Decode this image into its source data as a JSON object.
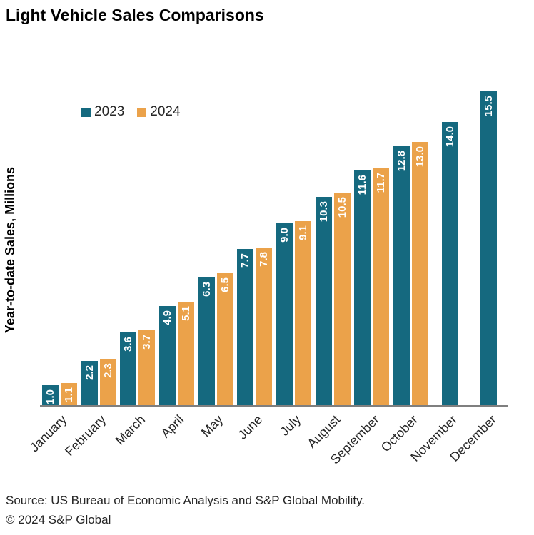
{
  "title": "Light Vehicle Sales Comparisons",
  "chart_data": {
    "type": "bar",
    "title": "Light Vehicle Sales Comparisons",
    "ylabel": "Year-to-date Sales, Millions",
    "xlabel": "",
    "ylim": [
      0,
      15.5
    ],
    "grid": false,
    "legend_position": "top-left-inside",
    "value_label_style": "rotated-vertical-white-inside-bar-top",
    "categories": [
      "January",
      "February",
      "March",
      "April",
      "May",
      "June",
      "July",
      "August",
      "September",
      "October",
      "November",
      "December"
    ],
    "series": [
      {
        "name": "2023",
        "color": "#15697f",
        "values": [
          1.0,
          2.2,
          3.6,
          4.9,
          6.3,
          7.7,
          9.0,
          10.3,
          11.6,
          12.8,
          14.0,
          15.5
        ]
      },
      {
        "name": "2024",
        "color": "#eba24a",
        "values": [
          1.1,
          2.3,
          3.7,
          5.1,
          6.5,
          7.8,
          9.1,
          10.5,
          11.7,
          13.0,
          null,
          null
        ]
      }
    ]
  },
  "footer": {
    "source": "Source: US Bureau of Economic Analysis and S&P Global Mobility.",
    "copyright": "© 2024 S&P Global"
  }
}
